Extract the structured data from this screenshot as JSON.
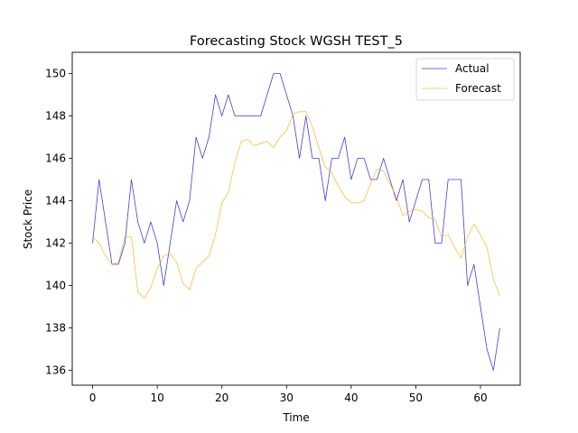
{
  "chart_data": {
    "type": "line",
    "title": "Forecasting Stock WGSH TEST_5",
    "xlabel": "Time",
    "ylabel": "Stock Price",
    "xlim": [
      -3.15,
      66.15
    ],
    "ylim": [
      135.3,
      151.0
    ],
    "xticks": [
      0,
      10,
      20,
      30,
      40,
      50,
      60
    ],
    "yticks": [
      136,
      138,
      140,
      142,
      144,
      146,
      148,
      150
    ],
    "grid": false,
    "legend_position": "top-right",
    "series": [
      {
        "name": "Actual",
        "color": "#0000cc",
        "x": [
          0,
          1,
          2,
          3,
          4,
          5,
          6,
          7,
          8,
          9,
          10,
          11,
          12,
          13,
          14,
          15,
          16,
          17,
          18,
          19,
          20,
          21,
          22,
          23,
          24,
          25,
          26,
          27,
          28,
          29,
          30,
          31,
          32,
          33,
          34,
          35,
          36,
          37,
          38,
          39,
          40,
          41,
          42,
          43,
          44,
          45,
          46,
          47,
          48,
          49,
          50,
          51,
          52,
          53,
          54,
          55,
          56,
          57,
          58,
          59,
          60,
          61,
          62,
          63
        ],
        "values": [
          142,
          145,
          143,
          141,
          141,
          142,
          145,
          143,
          142,
          143,
          142,
          140,
          142,
          144,
          143,
          144,
          147,
          146,
          147,
          149,
          148,
          149,
          148,
          148,
          148,
          148,
          148,
          149,
          150,
          150,
          149,
          148,
          146,
          148,
          146,
          146,
          144,
          146,
          146,
          147,
          145,
          146,
          146,
          145,
          145,
          146,
          145,
          144,
          145,
          143,
          144,
          145,
          145,
          142,
          142,
          145,
          145,
          145,
          140,
          141,
          139,
          137,
          136,
          138
        ]
      },
      {
        "name": "Forecast",
        "color": "#ffa500",
        "x": [
          0,
          1,
          2,
          3,
          4,
          5,
          6,
          7,
          8,
          9,
          10,
          11,
          12,
          13,
          14,
          15,
          16,
          17,
          18,
          19,
          20,
          21,
          22,
          23,
          24,
          25,
          26,
          27,
          28,
          29,
          30,
          31,
          32,
          33,
          34,
          35,
          36,
          37,
          38,
          39,
          40,
          41,
          42,
          43,
          44,
          45,
          46,
          47,
          48,
          49,
          50,
          51,
          52,
          53,
          54,
          55,
          56,
          57,
          58,
          59,
          60,
          61,
          62,
          63
        ],
        "values": [
          142.3,
          142.0,
          141.4,
          141.0,
          141.1,
          142.3,
          142.3,
          139.7,
          139.4,
          139.9,
          140.8,
          141.4,
          141.5,
          141.1,
          140.1,
          139.8,
          140.8,
          141.1,
          141.4,
          142.4,
          143.9,
          144.4,
          145.8,
          146.8,
          146.9,
          146.6,
          146.7,
          146.8,
          146.5,
          147.0,
          147.3,
          148.1,
          148.2,
          148.2,
          147.5,
          146.5,
          145.6,
          145.3,
          144.7,
          144.2,
          143.9,
          143.9,
          144.0,
          144.8,
          145.5,
          145.4,
          144.8,
          144.2,
          143.3,
          143.5,
          143.6,
          143.5,
          143.2,
          143.1,
          142.3,
          142.4,
          141.8,
          141.3,
          142.3,
          142.9,
          142.4,
          141.8,
          140.3,
          139.5
        ]
      }
    ]
  }
}
